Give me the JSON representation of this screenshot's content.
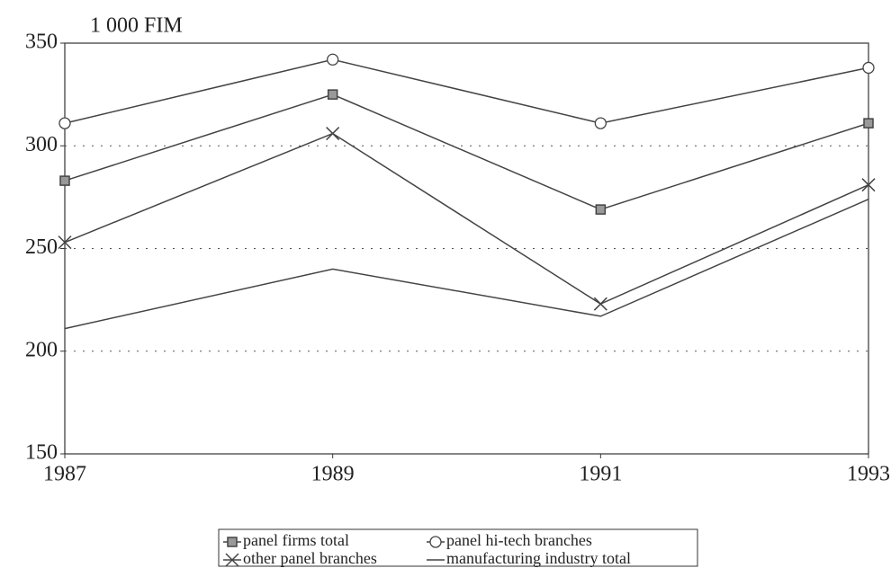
{
  "chart_data": {
    "type": "line",
    "y_label": "1 000 FIM",
    "x": [
      1987,
      1989,
      1991,
      1993
    ],
    "xlim": [
      1987,
      1993
    ],
    "xticks": [
      1987,
      1989,
      1991,
      1993
    ],
    "ylim": [
      150,
      350
    ],
    "yticks": [
      150,
      200,
      250,
      300,
      350
    ],
    "grid": true,
    "series": [
      {
        "name": "panel firms total",
        "color": "#444444",
        "marker": "square",
        "values": [
          283,
          325,
          269,
          311
        ]
      },
      {
        "name": "panel hi-tech branches",
        "color": "#444444",
        "marker": "circle",
        "values": [
          311,
          342,
          311,
          338
        ]
      },
      {
        "name": "other panel branches",
        "color": "#444444",
        "marker": "cross",
        "values": [
          253,
          306,
          223,
          281
        ]
      },
      {
        "name": "manufacturing industry total",
        "color": "#444444",
        "marker": "none",
        "values": [
          211,
          240,
          217,
          274
        ]
      }
    ]
  }
}
